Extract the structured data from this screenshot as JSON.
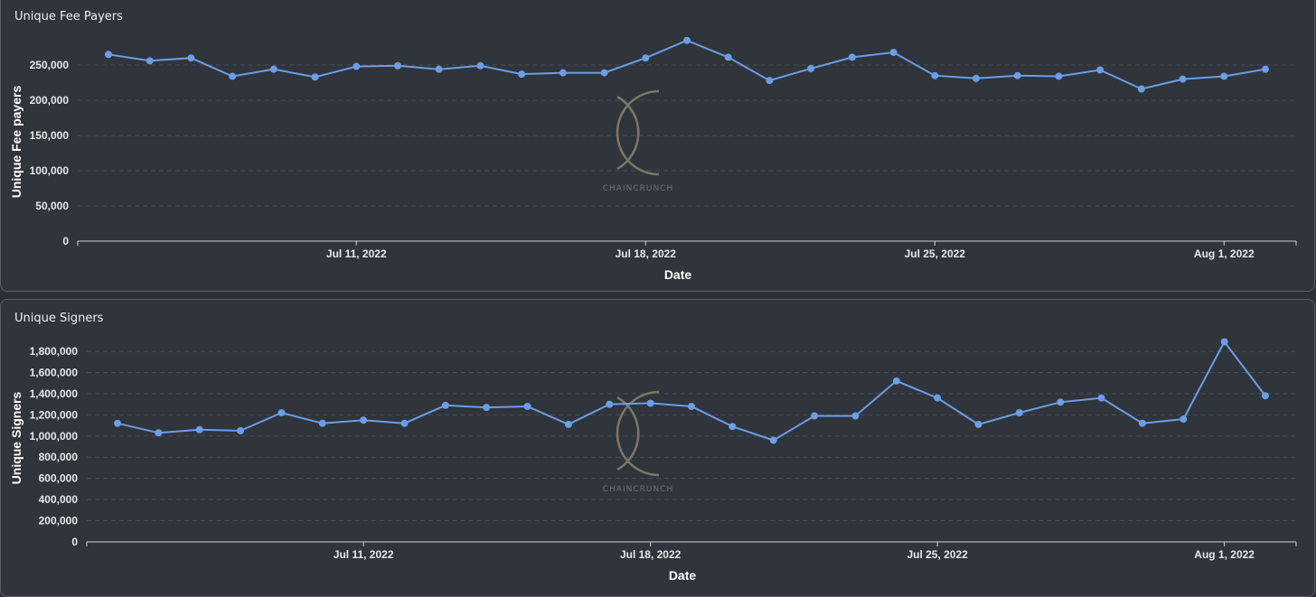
{
  "watermark": "CHAINCRUNCH",
  "colors": {
    "series": "#6b9ee6",
    "background": "#30343b"
  },
  "chart_data": [
    {
      "type": "line",
      "title": "Unique Fee Payers",
      "xlabel": "Date",
      "ylabel": "Unique Fee payers",
      "ylim": [
        0,
        285000
      ],
      "yticks": [
        0,
        50000,
        100000,
        150000,
        200000,
        250000
      ],
      "ytick_labels": [
        "0",
        "50,000",
        "100,000",
        "150,000",
        "200,000",
        "250,000"
      ],
      "xticks": [
        "2022-07-11",
        "2022-07-18",
        "2022-07-25",
        "2022-08-01"
      ],
      "xtick_labels": [
        "Jul 11, 2022",
        "Jul 18, 2022",
        "Jul 25, 2022",
        "Aug 1, 2022"
      ],
      "grid": true,
      "x": [
        "2022-07-05",
        "2022-07-06",
        "2022-07-07",
        "2022-07-08",
        "2022-07-09",
        "2022-07-10",
        "2022-07-11",
        "2022-07-12",
        "2022-07-13",
        "2022-07-14",
        "2022-07-15",
        "2022-07-16",
        "2022-07-17",
        "2022-07-18",
        "2022-07-19",
        "2022-07-20",
        "2022-07-21",
        "2022-07-22",
        "2022-07-23",
        "2022-07-24",
        "2022-07-25",
        "2022-07-26",
        "2022-07-27",
        "2022-07-28",
        "2022-07-29",
        "2022-07-30",
        "2022-07-31",
        "2022-08-01",
        "2022-08-02"
      ],
      "series": [
        {
          "values": [
            265000,
            256000,
            260000,
            234000,
            244000,
            233000,
            248000,
            249000,
            244000,
            249000,
            237000,
            239000,
            239000,
            260000,
            285000,
            261000,
            228000,
            245000,
            261000,
            268000,
            235000,
            231000,
            235000,
            234000,
            243000,
            216000,
            230000,
            234000,
            244000
          ]
        }
      ]
    },
    {
      "type": "line",
      "title": "Unique Signers",
      "xlabel": "Date",
      "ylabel": "Unique Signers",
      "ylim": [
        0,
        1900000
      ],
      "yticks": [
        0,
        200000,
        400000,
        600000,
        800000,
        1000000,
        1200000,
        1400000,
        1600000,
        1800000
      ],
      "ytick_labels": [
        "0",
        "200,000",
        "400,000",
        "600,000",
        "800,000",
        "1,000,000",
        "1,200,000",
        "1,400,000",
        "1,600,000",
        "1,800,000"
      ],
      "xticks": [
        "2022-07-11",
        "2022-07-18",
        "2022-07-25",
        "2022-08-01"
      ],
      "xtick_labels": [
        "Jul 11, 2022",
        "Jul 18, 2022",
        "Jul 25, 2022",
        "Aug 1, 2022"
      ],
      "grid": true,
      "x": [
        "2022-07-05",
        "2022-07-06",
        "2022-07-07",
        "2022-07-08",
        "2022-07-09",
        "2022-07-10",
        "2022-07-11",
        "2022-07-12",
        "2022-07-13",
        "2022-07-14",
        "2022-07-15",
        "2022-07-16",
        "2022-07-17",
        "2022-07-18",
        "2022-07-19",
        "2022-07-20",
        "2022-07-21",
        "2022-07-22",
        "2022-07-23",
        "2022-07-24",
        "2022-07-25",
        "2022-07-26",
        "2022-07-27",
        "2022-07-28",
        "2022-07-29",
        "2022-07-30",
        "2022-07-31",
        "2022-08-01",
        "2022-08-02"
      ],
      "series": [
        {
          "values": [
            1120000,
            1030000,
            1060000,
            1050000,
            1220000,
            1120000,
            1150000,
            1120000,
            1290000,
            1270000,
            1280000,
            1110000,
            1300000,
            1310000,
            1280000,
            1090000,
            960000,
            1190000,
            1190000,
            1520000,
            1360000,
            1110000,
            1220000,
            1320000,
            1360000,
            1120000,
            1160000,
            1890000,
            1380000
          ]
        }
      ]
    }
  ]
}
